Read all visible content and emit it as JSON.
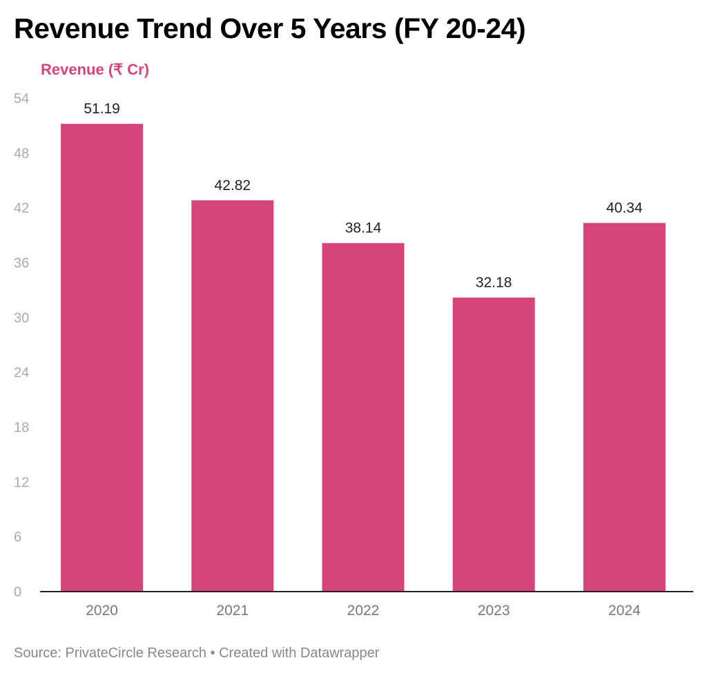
{
  "chart_data": {
    "type": "bar",
    "title": "Revenue Trend Over 5 Years (FY 20-24)",
    "ylabel": "Revenue (₹ Cr)",
    "xlabel": "",
    "categories": [
      "2020",
      "2021",
      "2022",
      "2023",
      "2024"
    ],
    "values": [
      51.19,
      42.82,
      38.14,
      32.18,
      40.34
    ],
    "value_labels": [
      "51.19",
      "42.82",
      "38.14",
      "32.18",
      "40.34"
    ],
    "ylim": [
      0,
      54
    ],
    "yticks": [
      0,
      6,
      12,
      18,
      24,
      30,
      36,
      42,
      48,
      54
    ],
    "grid": false,
    "legend": "none",
    "bar_color": "#d6457a",
    "source": "Source: PrivateCircle Research • Created with Datawrapper"
  }
}
